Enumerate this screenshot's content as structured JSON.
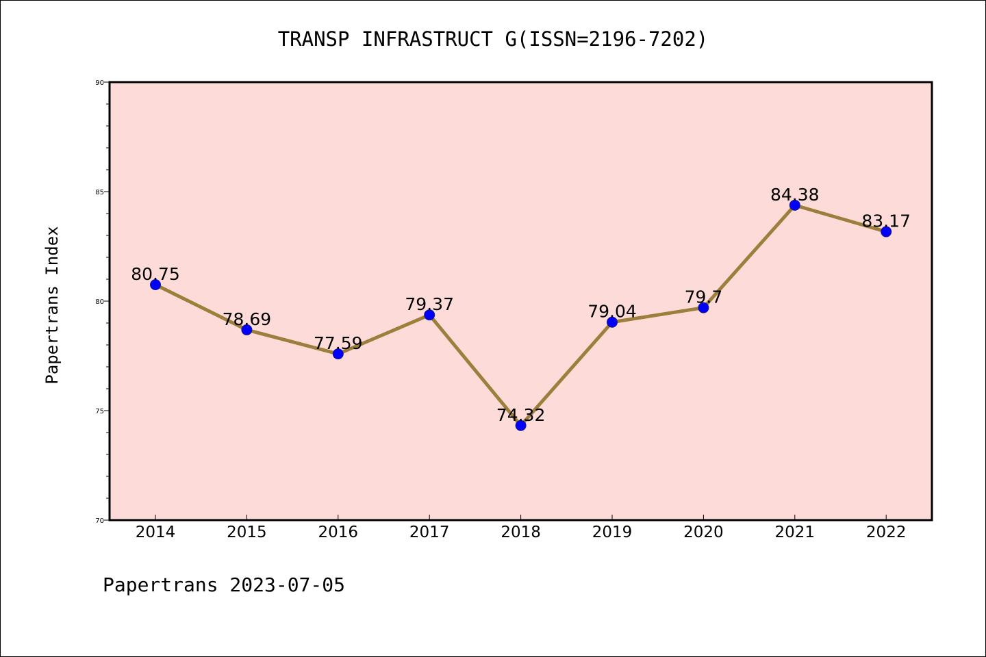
{
  "footer": {
    "text": "Papertrans 2023-07-05"
  },
  "chart_data": {
    "type": "line",
    "title": "TRANSP INFRASTRUCT G(ISSN=2196-7202)",
    "ylabel": "Papertrans Index",
    "xlabel": "",
    "categories": [
      "2014",
      "2015",
      "2016",
      "2017",
      "2018",
      "2019",
      "2020",
      "2021",
      "2022"
    ],
    "series": [
      {
        "values": [
          80.75,
          78.69,
          77.59,
          79.37,
          74.32,
          79.04,
          79.7,
          84.38,
          83.17
        ],
        "labels": [
          "80.75",
          "78.69",
          "77.59",
          "79.37",
          "74.32",
          "79.04",
          "79.7",
          "84.38",
          "83.17"
        ]
      }
    ],
    "ylim": [
      70,
      90
    ],
    "yticks": [
      70,
      75,
      80,
      85,
      90
    ],
    "grid": false,
    "colors": {
      "plot_background": "#fddbd8",
      "line": "#9c7f3c",
      "marker": "#0000ff",
      "axes": "#000000"
    }
  }
}
